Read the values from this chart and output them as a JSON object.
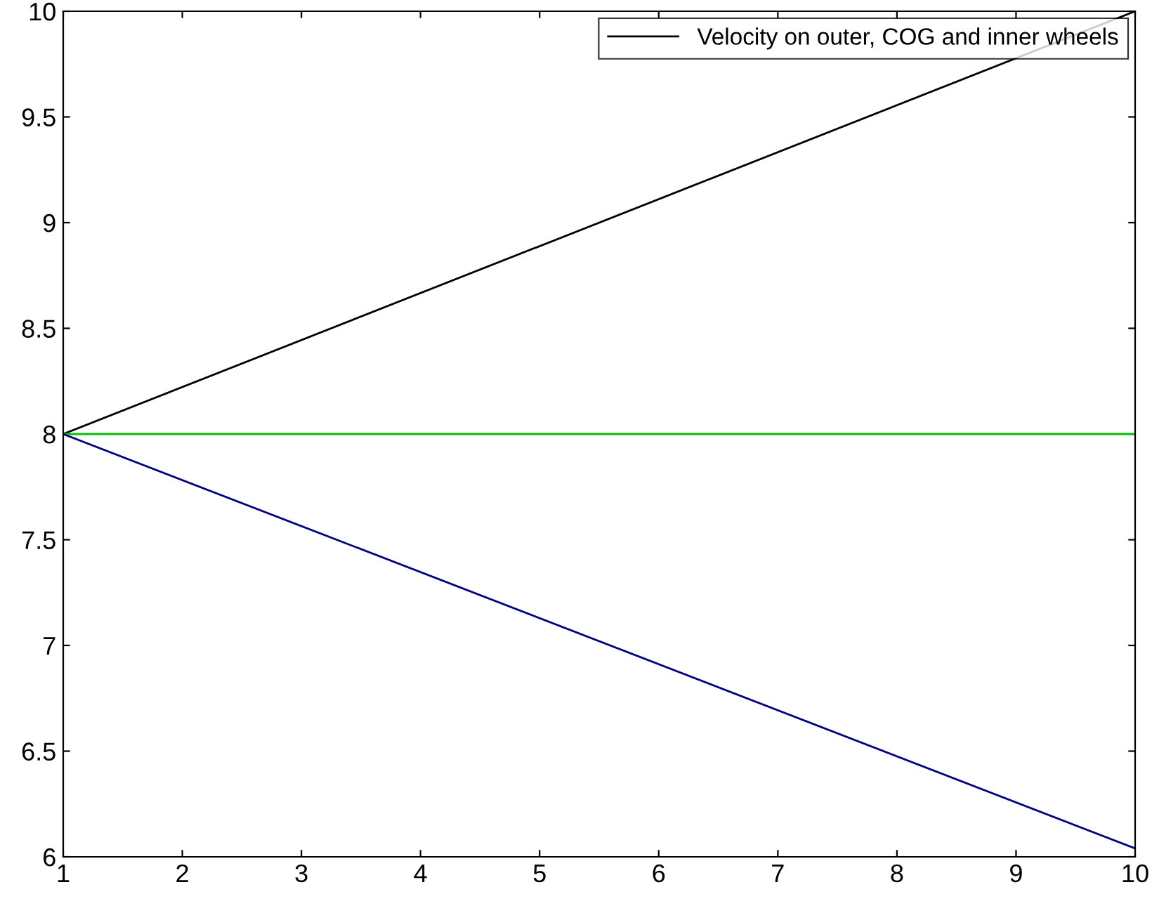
{
  "chart_data": {
    "type": "line",
    "x": [
      1,
      10
    ],
    "series": [
      {
        "name": "Velocity on outer, COG and inner wheels",
        "color": "#000000",
        "values": [
          8,
          10
        ]
      },
      {
        "color": "#00c000",
        "values": [
          8,
          8
        ]
      },
      {
        "color": "#000080",
        "values": [
          8,
          6.04
        ]
      }
    ],
    "xlim": [
      1,
      10
    ],
    "xticks": [
      1,
      2,
      3,
      4,
      5,
      6,
      7,
      8,
      9,
      10
    ],
    "ylim": [
      6,
      10
    ],
    "yticks": [
      6,
      6.5,
      7,
      7.5,
      8,
      8.5,
      9,
      9.5,
      10
    ],
    "grid": false,
    "legend": "top right",
    "marker": "none",
    "line_style": "solid"
  }
}
